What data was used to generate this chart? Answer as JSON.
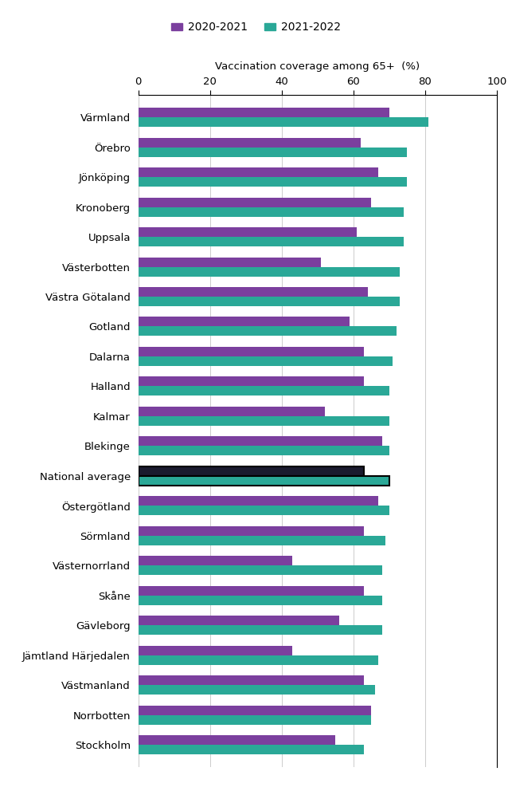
{
  "categories": [
    "Värmland",
    "Örebro",
    "Jönköping",
    "Kronoberg",
    "Uppsala",
    "Västerbotten",
    "Västra Götaland",
    "Gotland",
    "Dalarna",
    "Halland",
    "Kalmar",
    "Blekinge",
    "National average",
    "Östergötland",
    "Sörmland",
    "Västernorrland",
    "Skåne",
    "Gävleborg",
    "Jämtland Härjedalen",
    "Västmanland",
    "Norrbotten",
    "Stockholm"
  ],
  "values_2020": [
    70,
    62,
    67,
    65,
    61,
    51,
    64,
    59,
    63,
    63,
    52,
    68,
    63,
    67,
    63,
    43,
    63,
    56,
    43,
    63,
    65,
    55
  ],
  "values_2021": [
    81,
    75,
    75,
    74,
    74,
    73,
    73,
    72,
    71,
    70,
    70,
    70,
    70,
    70,
    69,
    68,
    68,
    68,
    67,
    66,
    65,
    63
  ],
  "color_2020": "#7B3F9E",
  "color_2021": "#2AA897",
  "national_avg_color_2020": "#1a1a2e",
  "xlabel": "Vaccination coverage among 65+  (%)",
  "legend_2020": "2020-2021",
  "legend_2021": "2021-2022",
  "xlim": [
    0,
    100
  ],
  "xticks": [
    0,
    20,
    40,
    60,
    80,
    100
  ],
  "background_color": "#ffffff",
  "bar_height": 0.32,
  "figsize": [
    6.43,
    9.92
  ],
  "dpi": 100
}
